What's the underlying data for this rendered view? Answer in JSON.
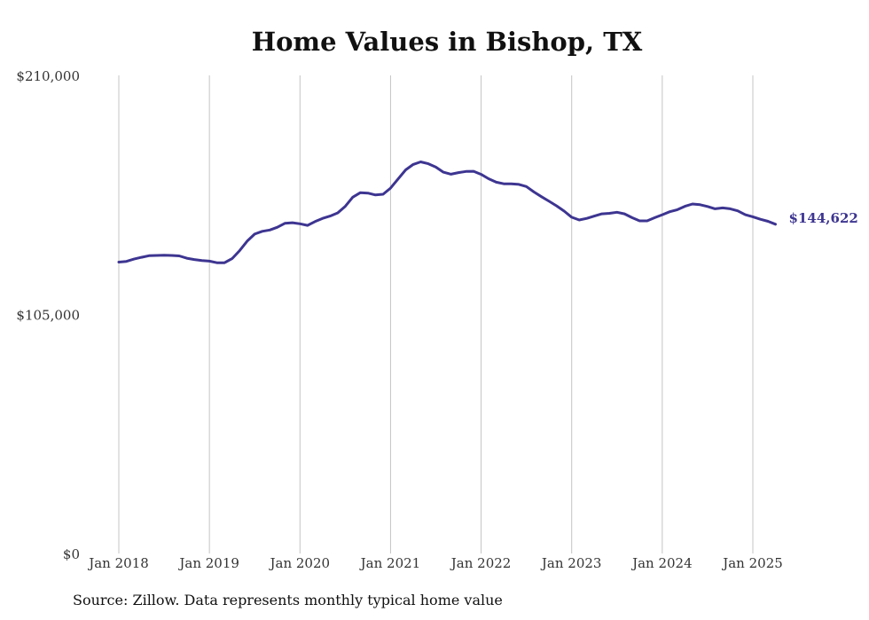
{
  "chart_data": {
    "type": "line",
    "title": "Home Values in Bishop, TX",
    "source": "Source: Zillow. Data represents monthly typical home value",
    "ylim": [
      0,
      210000
    ],
    "y_ticks": [
      "$0",
      "$105,000",
      "$210,000"
    ],
    "y_tick_values": [
      0,
      105000,
      210000
    ],
    "x_ticks": [
      "Jan 2018",
      "Jan 2019",
      "Jan 2020",
      "Jan 2021",
      "Jan 2022",
      "Jan 2023",
      "Jan 2024",
      "Jan 2025"
    ],
    "x_tick_values": [
      2018.0,
      2019.0,
      2020.0,
      2021.0,
      2022.0,
      2023.0,
      2024.0,
      2025.0
    ],
    "xlim": [
      2018.0,
      2025.25
    ],
    "grid": "vertical",
    "line_color": "#3d3591",
    "end_label": "$144,622",
    "series": [
      {
        "x": [
          2018.0,
          2018.083,
          2018.167,
          2018.25,
          2018.333,
          2018.417,
          2018.5,
          2018.583,
          2018.667,
          2018.75,
          2018.833,
          2018.917,
          2019.0,
          2019.083,
          2019.167,
          2019.25,
          2019.333,
          2019.417,
          2019.5,
          2019.583,
          2019.667,
          2019.75,
          2019.833,
          2019.917,
          2020.0,
          2020.083,
          2020.167,
          2020.25,
          2020.333,
          2020.417,
          2020.5,
          2020.583,
          2020.667,
          2020.75,
          2020.833,
          2020.917,
          2021.0,
          2021.083,
          2021.167,
          2021.25,
          2021.333,
          2021.417,
          2021.5,
          2021.583,
          2021.667,
          2021.75,
          2021.833,
          2021.917,
          2022.0,
          2022.083,
          2022.167,
          2022.25,
          2022.333,
          2022.417,
          2022.5,
          2022.583,
          2022.667,
          2022.75,
          2022.833,
          2022.917,
          2023.0,
          2023.083,
          2023.167,
          2023.25,
          2023.333,
          2023.417,
          2023.5,
          2023.583,
          2023.667,
          2023.75,
          2023.833,
          2023.917,
          2024.0,
          2024.083,
          2024.167,
          2024.25,
          2024.333,
          2024.417,
          2024.5,
          2024.583,
          2024.667,
          2024.75,
          2024.833,
          2024.917,
          2025.0,
          2025.083,
          2025.167,
          2025.25
        ],
        "values": [
          128000,
          128300,
          129300,
          130100,
          130800,
          130900,
          131000,
          130900,
          130700,
          129700,
          129100,
          128700,
          128400,
          127700,
          127700,
          129500,
          133000,
          137200,
          140300,
          141500,
          142100,
          143300,
          145000,
          145300,
          144800,
          144100,
          145800,
          147200,
          148200,
          149600,
          152500,
          156500,
          158500,
          158300,
          157500,
          157800,
          160500,
          164500,
          168500,
          170900,
          172000,
          171200,
          169700,
          167500,
          166600,
          167300,
          167800,
          167900,
          166500,
          164600,
          163100,
          162400,
          162400,
          162100,
          161200,
          158800,
          156700,
          154700,
          152700,
          150400,
          147700,
          146500,
          147200,
          148200,
          149200,
          149400,
          149900,
          149200,
          147500,
          146100,
          146100,
          147500,
          148800,
          150100,
          151000,
          152500,
          153500,
          153200,
          152400,
          151400,
          151800,
          151400,
          150500,
          148800,
          147900,
          146800,
          145900,
          144622
        ]
      }
    ]
  }
}
